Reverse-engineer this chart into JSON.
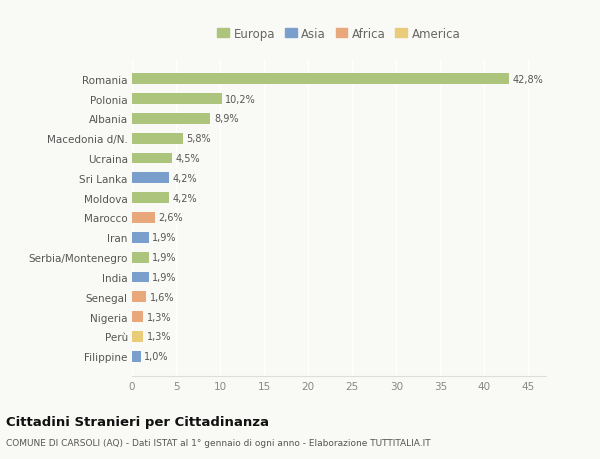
{
  "countries": [
    "Romania",
    "Polonia",
    "Albania",
    "Macedonia d/N.",
    "Ucraina",
    "Sri Lanka",
    "Moldova",
    "Marocco",
    "Iran",
    "Serbia/Montenegro",
    "India",
    "Senegal",
    "Nigeria",
    "Perù",
    "Filippine"
  ],
  "values": [
    42.8,
    10.2,
    8.9,
    5.8,
    4.5,
    4.2,
    4.2,
    2.6,
    1.9,
    1.9,
    1.9,
    1.6,
    1.3,
    1.3,
    1.0
  ],
  "labels": [
    "42,8%",
    "10,2%",
    "8,9%",
    "5,8%",
    "4,5%",
    "4,2%",
    "4,2%",
    "2,6%",
    "1,9%",
    "1,9%",
    "1,9%",
    "1,6%",
    "1,3%",
    "1,3%",
    "1,0%"
  ],
  "continent": [
    "Europa",
    "Europa",
    "Europa",
    "Europa",
    "Europa",
    "Asia",
    "Europa",
    "Africa",
    "Asia",
    "Europa",
    "Asia",
    "Africa",
    "Africa",
    "America",
    "Asia"
  ],
  "colors": {
    "Europa": "#adc47d",
    "Asia": "#7a9fcc",
    "Africa": "#e8a87c",
    "America": "#e8cc7a"
  },
  "legend_order": [
    "Europa",
    "Asia",
    "Africa",
    "America"
  ],
  "title": "Cittadini Stranieri per Cittadinanza",
  "subtitle": "COMUNE DI CARSOLI (AQ) - Dati ISTAT al 1° gennaio di ogni anno - Elaborazione TUTTITALIA.IT",
  "xlim": [
    0,
    47
  ],
  "xticks": [
    0,
    5,
    10,
    15,
    20,
    25,
    30,
    35,
    40,
    45
  ],
  "bg_color": "#f9f9f6",
  "grid_color": "#ffffff"
}
